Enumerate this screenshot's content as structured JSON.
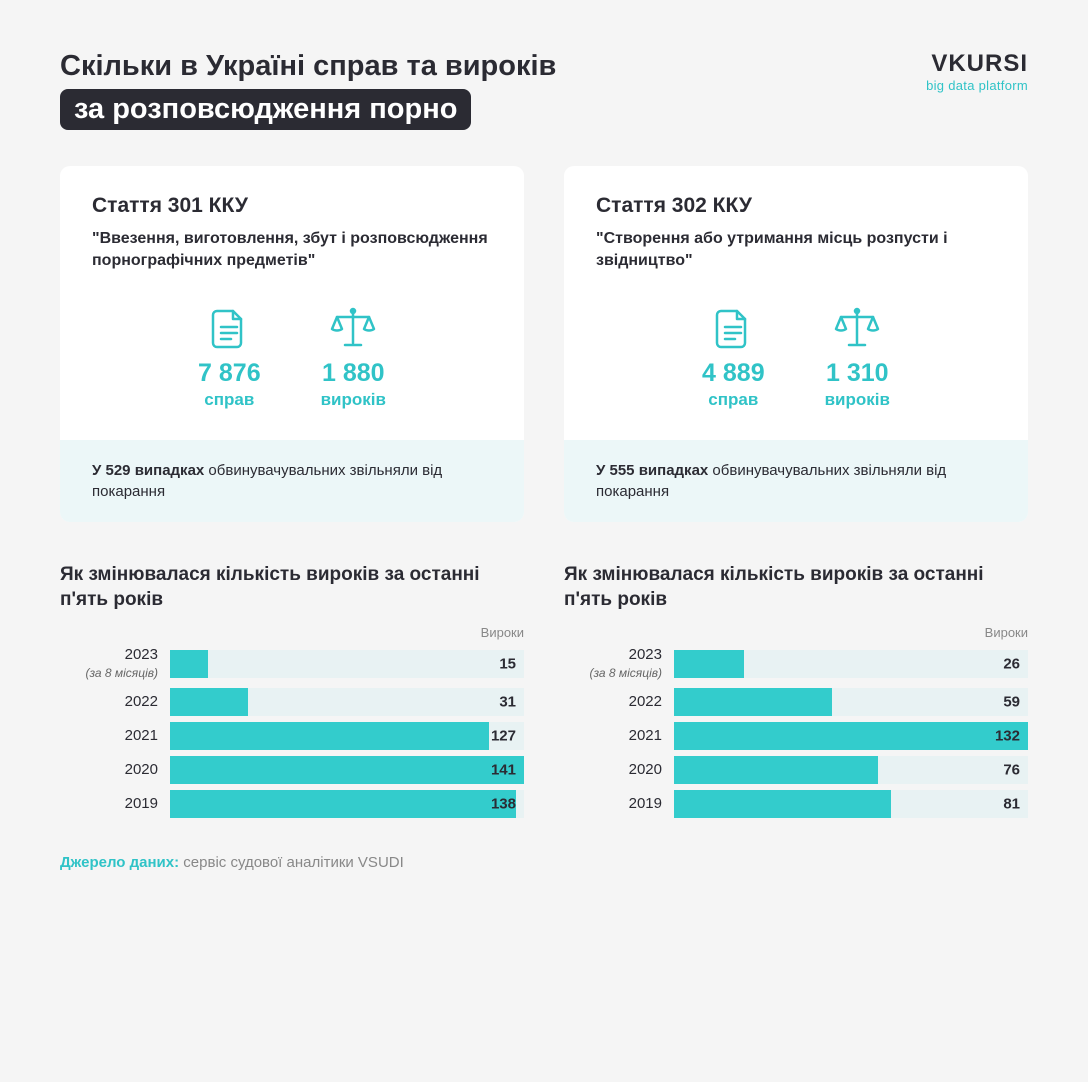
{
  "colors": {
    "accent": "#30c3c7",
    "bar_fill": "#33cccc",
    "bar_track": "#e8f2f3",
    "card_bg": "#ffffff",
    "card_footer_bg": "#ecf7f8",
    "page_bg": "#f5f5f5",
    "text_dark": "#2b2b33",
    "text_muted": "#888888"
  },
  "header": {
    "title_line1": "Скільки в Україні справ та вироків",
    "title_line2": "за розповсюдження порно",
    "logo_name": "VKURSI",
    "logo_sub": "big data platform"
  },
  "cards": [
    {
      "title": "Стаття 301 ККУ",
      "desc": "\"Ввезення, виготовлення, збут і розповсюдження порнографічних предметів\"",
      "cases_num": "7 876",
      "cases_label": "справ",
      "verdicts_num": "1 880",
      "verdicts_label": "вироків",
      "footer_bold": "У 529 випадках",
      "footer_rest": " обвинувачувальних звільняли від покарання"
    },
    {
      "title": "Стаття 302 ККУ",
      "desc": "\"Створення або утримання місць розпусти і звідництво\"",
      "cases_num": "4 889",
      "cases_label": "справ",
      "verdicts_num": "1 310",
      "verdicts_label": "вироків",
      "footer_bold": "У 555 випадках",
      "footer_rest": " обвинувачувальних звільняли від покарання"
    }
  ],
  "charts": [
    {
      "title": "Як змінювалася кількість вироків за останні п'ять років",
      "legend": "Вироки",
      "type": "bar-horizontal",
      "max_value": 141,
      "bars": [
        {
          "year": "2023",
          "sub": "(за 8 місяців)",
          "value": 15
        },
        {
          "year": "2022",
          "sub": "",
          "value": 31
        },
        {
          "year": "2021",
          "sub": "",
          "value": 127
        },
        {
          "year": "2020",
          "sub": "",
          "value": 141
        },
        {
          "year": "2019",
          "sub": "",
          "value": 138
        }
      ]
    },
    {
      "title": "Як змінювалася кількість вироків за останні п'ять років",
      "legend": "Вироки",
      "type": "bar-horizontal",
      "max_value": 132,
      "bars": [
        {
          "year": "2023",
          "sub": "(за 8 місяців)",
          "value": 26
        },
        {
          "year": "2022",
          "sub": "",
          "value": 59
        },
        {
          "year": "2021",
          "sub": "",
          "value": 132
        },
        {
          "year": "2020",
          "sub": "",
          "value": 76
        },
        {
          "year": "2019",
          "sub": "",
          "value": 81
        }
      ]
    }
  ],
  "source": {
    "label": "Джерело даних:",
    "text": " сервіс судової аналітики VSUDI"
  }
}
